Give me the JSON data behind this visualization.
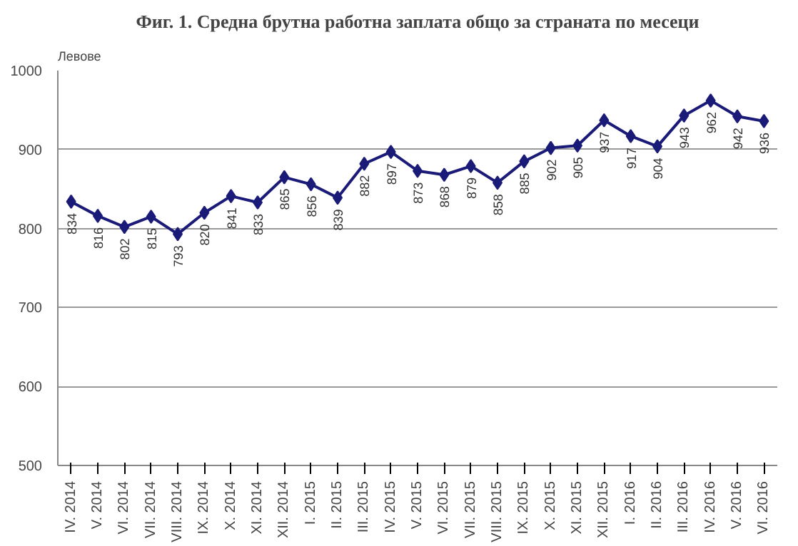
{
  "chart_data": {
    "type": "line",
    "title": "Фиг. 1. Средна брутна работна заплата общо за страната по месеци",
    "ylabel": "Левове",
    "categories": [
      "IV. 2014",
      "V. 2014",
      "VI. 2014",
      "VII. 2014",
      "VIII. 2014",
      "IX. 2014",
      "X. 2014",
      "XI. 2014",
      "XII. 2014",
      "I. 2015",
      "II. 2015",
      "III. 2015",
      "IV. 2015",
      "V. 2015",
      "VI. 2015",
      "VII. 2015",
      "VIII. 2015",
      "IX. 2015",
      "X. 2015",
      "XI. 2015",
      "XII. 2015",
      "I. 2016",
      "II. 2016",
      "III. 2016",
      "IV. 2016",
      "V. 2016",
      "VI. 2016"
    ],
    "series": [
      {
        "color": "#1a1a78",
        "values": [
          834,
          816,
          802,
          815,
          793,
          820,
          841,
          833,
          865,
          856,
          839,
          882,
          897,
          873,
          868,
          879,
          858,
          885,
          902,
          905,
          937,
          917,
          904,
          943,
          962,
          942,
          936
        ]
      }
    ],
    "ylim": [
      500,
      1000
    ],
    "yticks": [
      500,
      600,
      700,
      800,
      900,
      1000
    ],
    "grid": "y",
    "marker": "diamond",
    "data_labels": true
  }
}
